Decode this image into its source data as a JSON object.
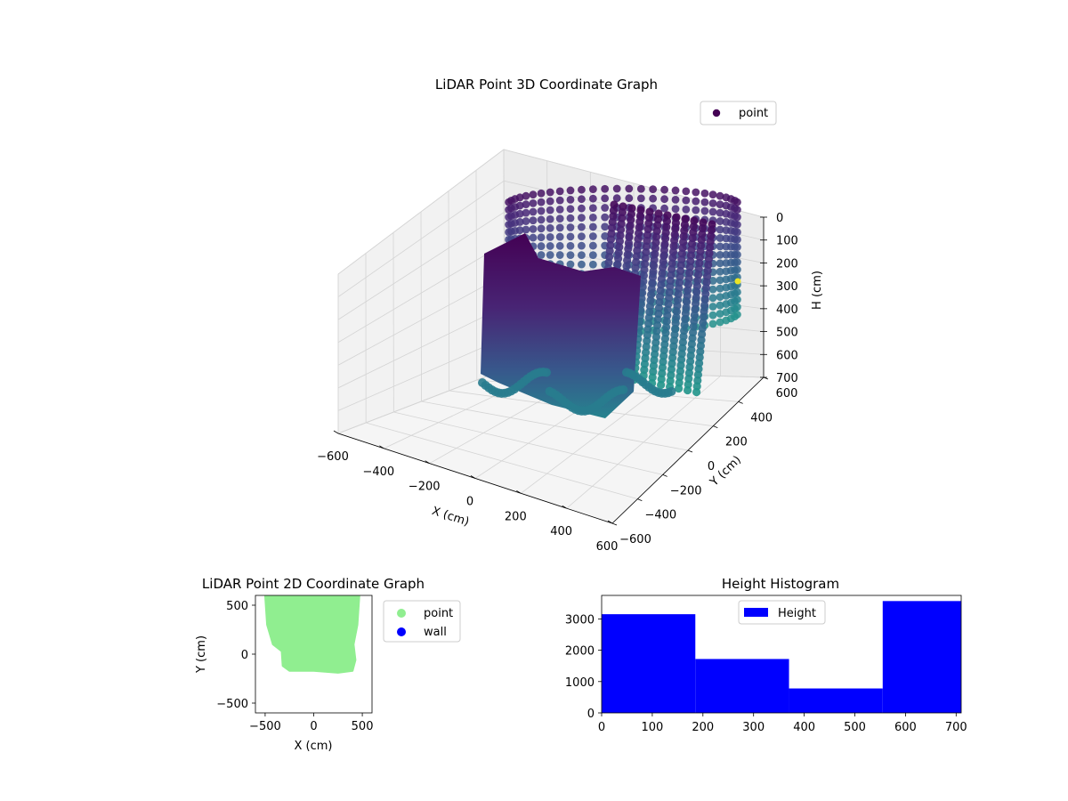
{
  "chart_data": [
    {
      "type": "scatter",
      "projection": "3d",
      "title": "LiDAR Point 3D Coordinate Graph",
      "xlabel": "X (cm)",
      "ylabel": "Y (cm)",
      "zlabel": "H (cm)",
      "xlim": [
        -600,
        600
      ],
      "ylim": [
        -600,
        600
      ],
      "zlim": [
        700,
        0
      ],
      "z_inverted": true,
      "xticks": [
        "−600",
        "−400",
        "−200",
        "0",
        "200",
        "400",
        "600"
      ],
      "yticks": [
        "−600",
        "−400",
        "−200",
        "0",
        "200",
        "400",
        "600"
      ],
      "zticks": [
        "0",
        "100",
        "200",
        "300",
        "400",
        "500",
        "600",
        "700"
      ],
      "grid": true,
      "legend_position": "top-right",
      "series": [
        {
          "name": "point",
          "color": "#440154"
        }
      ],
      "colormap": "viridis",
      "point_cloud": {
        "shape": "rectangular room walls",
        "x_range": [
          -500,
          500
        ],
        "y_range": [
          -200,
          600
        ],
        "h_range": [
          0,
          700
        ]
      }
    },
    {
      "type": "scatter",
      "title": "LiDAR Point 2D Coordinate Graph",
      "xlabel": "X (cm)",
      "ylabel": "Y (cm)",
      "xlim": [
        -600,
        600
      ],
      "ylim": [
        -600,
        600
      ],
      "xticks": [
        "−500",
        "0",
        "500"
      ],
      "yticks": [
        "−500",
        "0",
        "500"
      ],
      "legend_position": "outside-right",
      "series": [
        {
          "name": "point",
          "color": "#90ee90"
        },
        {
          "name": "wall",
          "color": "#0000ff"
        }
      ],
      "footprint": {
        "outline": [
          [
            -500,
            600
          ],
          [
            -480,
            300
          ],
          [
            -420,
            100
          ],
          [
            -330,
            30
          ],
          [
            -320,
            -120
          ],
          [
            -250,
            -170
          ],
          [
            0,
            -170
          ],
          [
            250,
            -190
          ],
          [
            400,
            -170
          ],
          [
            430,
            -60
          ],
          [
            410,
            100
          ],
          [
            450,
            300
          ],
          [
            470,
            600
          ]
        ]
      }
    },
    {
      "type": "bar",
      "subtype": "histogram",
      "title": "Height Histogram",
      "xlim": [
        0,
        710
      ],
      "ylim": [
        0,
        3750
      ],
      "xticks": [
        "0",
        "100",
        "200",
        "300",
        "400",
        "500",
        "600",
        "700"
      ],
      "yticks": [
        "0",
        "1000",
        "2000",
        "3000"
      ],
      "bin_edges": [
        0,
        185,
        370,
        555,
        710
      ],
      "values": [
        3150,
        1720,
        780,
        3570
      ],
      "legend_position": "upper-center",
      "series": [
        {
          "name": "Height",
          "color": "#0000ff"
        }
      ]
    }
  ]
}
